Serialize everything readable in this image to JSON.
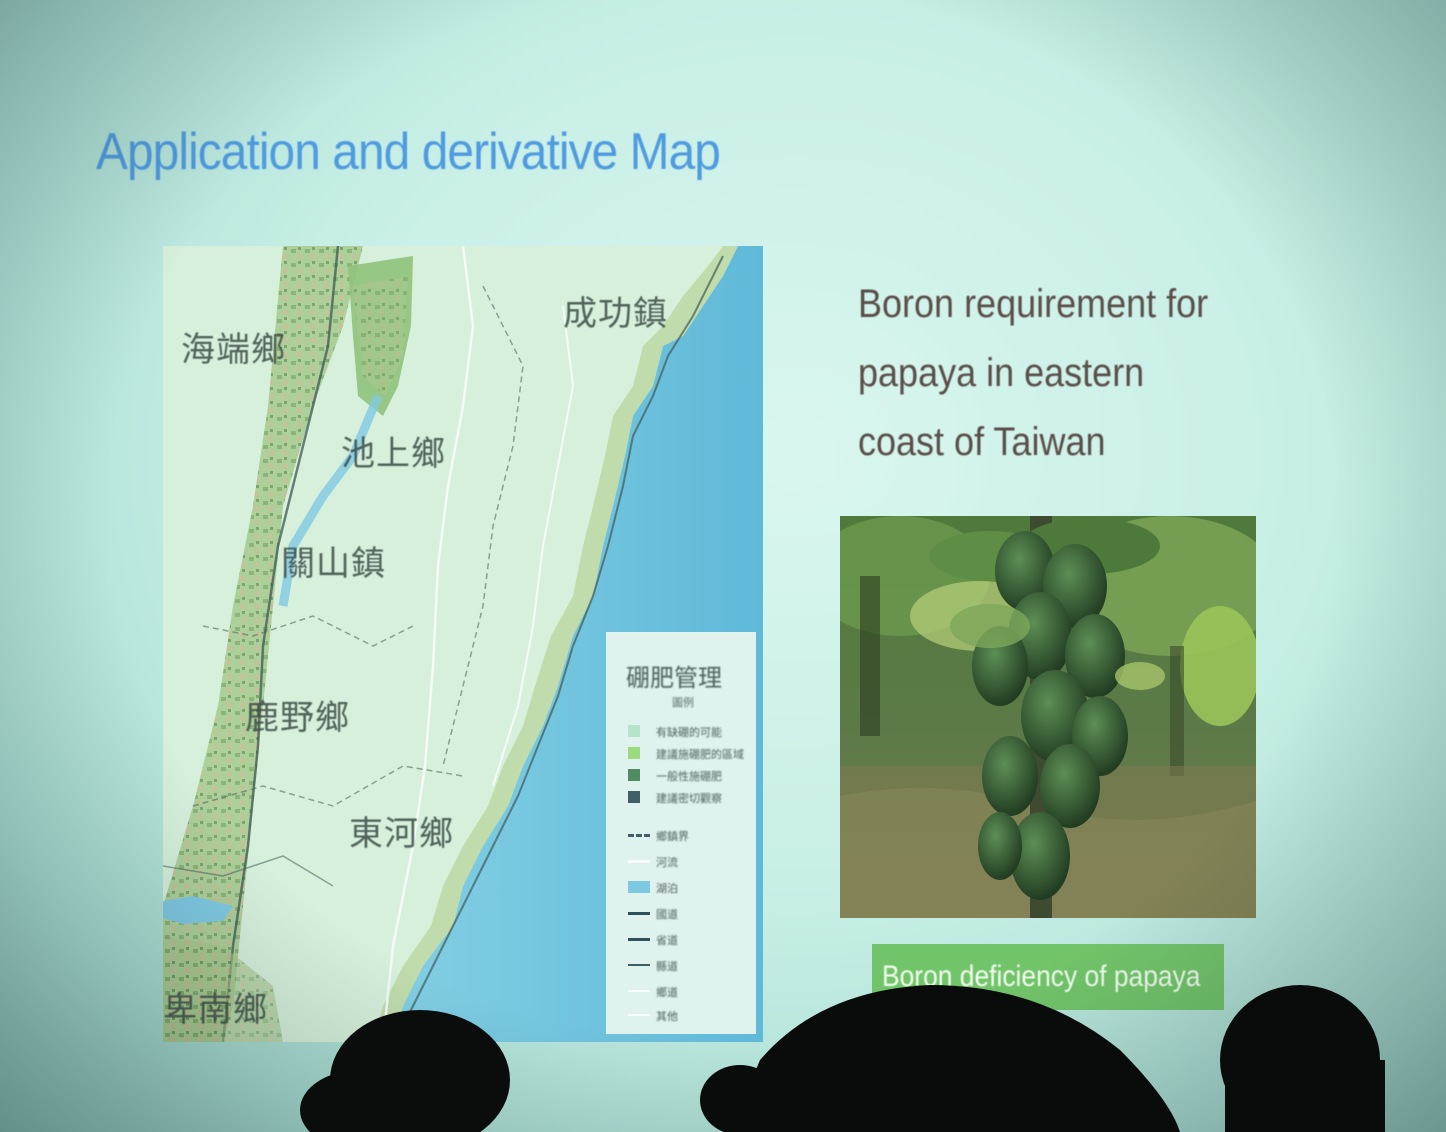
{
  "slide": {
    "title": "Application and derivative Map",
    "heading": "Boron requirement for papaya in eastern coast of Taiwan",
    "caption": "Boron deficiency of papaya"
  },
  "map": {
    "places": [
      "海端鄉",
      "池上鄉",
      "成功鎮",
      "關山鎮",
      "鹿野鄉",
      "東河鄉",
      "卑南鄉"
    ],
    "legend": {
      "title": "硼肥管理",
      "subtitle": "圖例",
      "fill_items": [
        {
          "label": "有缺硼的可能",
          "color": "#b8e6c8"
        },
        {
          "label": "建議施硼肥的區域",
          "color": "#9fdc7c"
        },
        {
          "label": "一般性施硼肥",
          "color": "#4f8a5c"
        },
        {
          "label": "建議密切觀察",
          "color": "#3f5a60"
        }
      ],
      "line_items": [
        {
          "label": "鄉鎮界",
          "color": "#3f5a60",
          "style": "dashed"
        },
        {
          "label": "河流",
          "color": "#ffffff",
          "style": "solid"
        },
        {
          "label": "湖泊",
          "color": "#7fc9e3",
          "style": "area"
        },
        {
          "label": "國道",
          "color": "#2c4a55",
          "style": "solid"
        },
        {
          "label": "省道",
          "color": "#2c4a55",
          "style": "solid"
        },
        {
          "label": "縣道",
          "color": "#3a5a60",
          "style": "solid"
        },
        {
          "label": "鄉道",
          "color": "#ffffff",
          "style": "solid"
        },
        {
          "label": "其他",
          "color": "#ffffff",
          "style": "solid"
        }
      ]
    }
  },
  "colors": {
    "screen": "#c8efe6",
    "title": "#4f9be0",
    "heading": "#5a4e4a",
    "caption_bg": "#72c46a",
    "sea": "#6fc3dc"
  }
}
